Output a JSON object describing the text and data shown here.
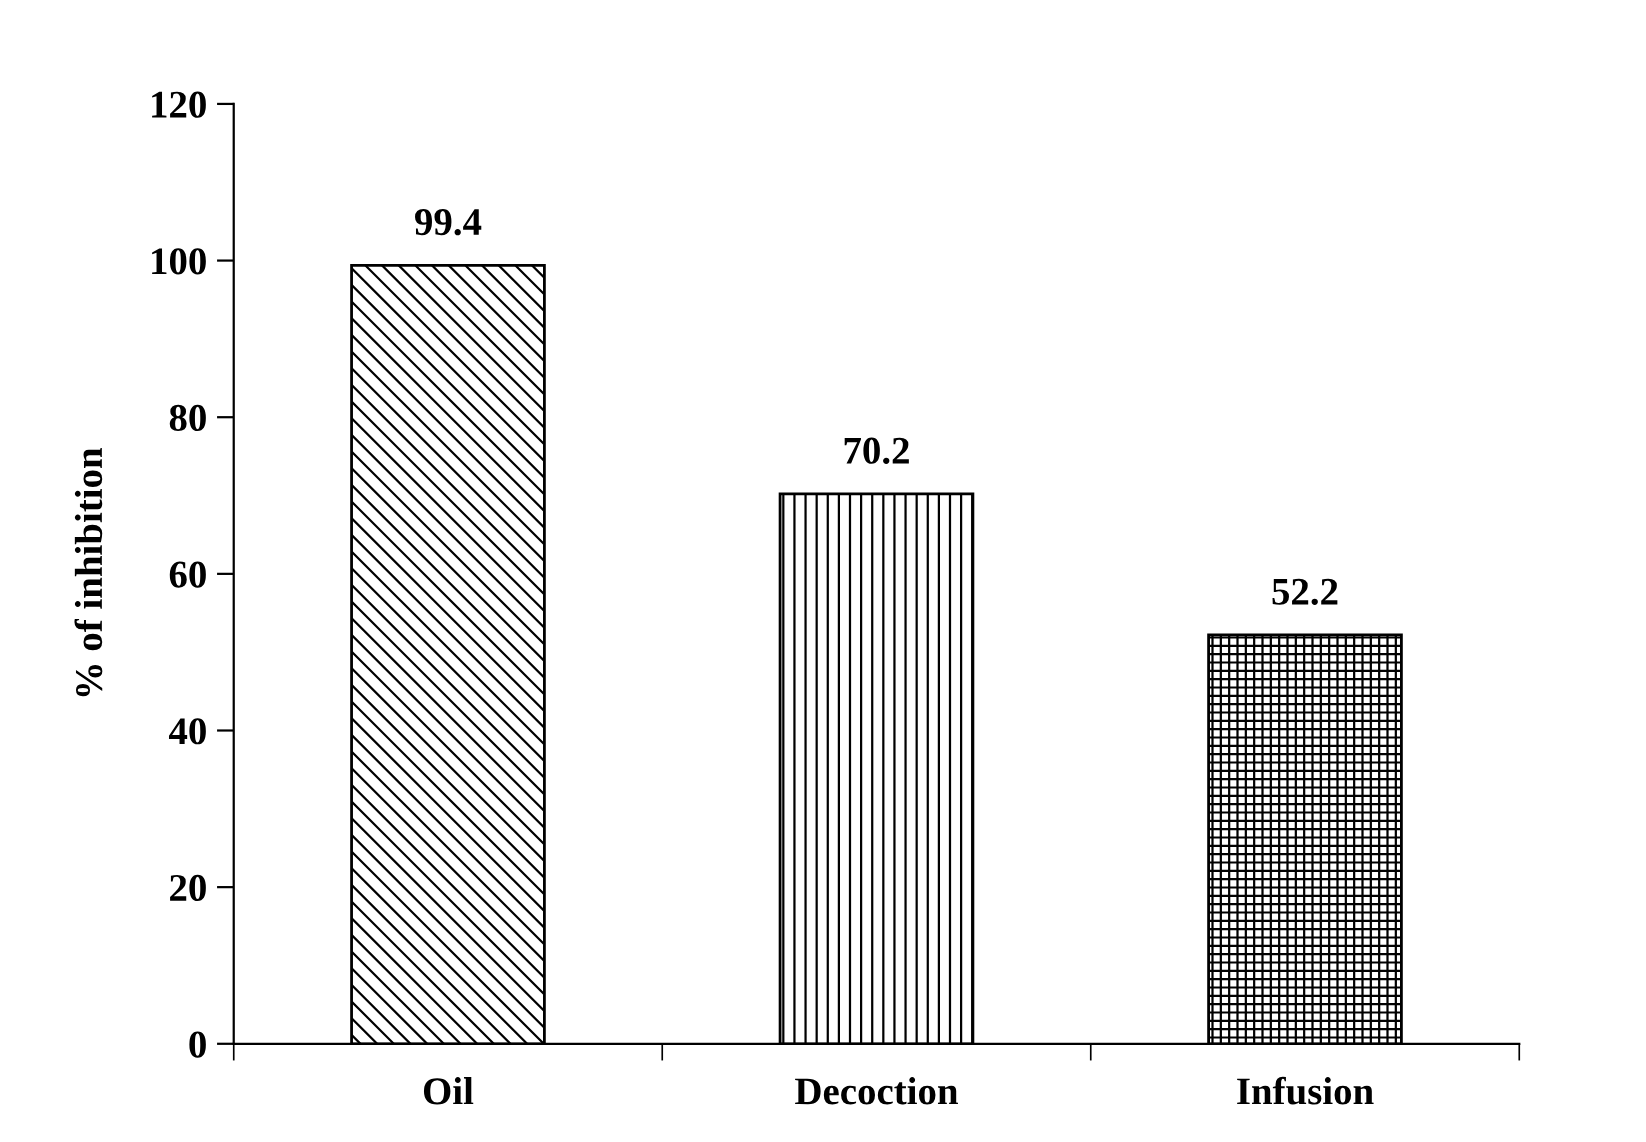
{
  "chart_data": {
    "type": "bar",
    "ylabel": "% of inhibition",
    "categories": [
      "Oil",
      "Decoction",
      "Infusion"
    ],
    "values": [
      99.4,
      70.2,
      52.2
    ],
    "color": "#000000",
    "data_labels": true,
    "ylim": [
      0,
      120
    ],
    "yticks": [
      0,
      20,
      40,
      60,
      80,
      100,
      120
    ],
    "grid": false,
    "legend": false
  }
}
